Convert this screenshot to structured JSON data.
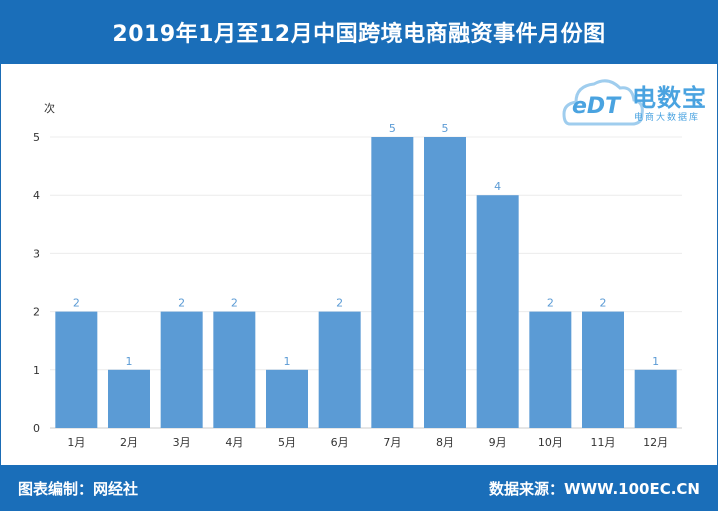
{
  "header": {
    "title": "2019年1月至12月中国跨境电商融资事件月份图"
  },
  "footer": {
    "left": "图表编制：网经社",
    "right": "数据来源：WWW.100EC.CN"
  },
  "logo": {
    "main": "电数宝",
    "sub": "电商大数据库",
    "mark": "eDT",
    "icon": "cloud-icon"
  },
  "colors": {
    "bar": "#5b9bd5",
    "header": "#1a6eb9",
    "label": "#5b9bd5"
  },
  "chart_data": {
    "type": "bar",
    "categories": [
      "1月",
      "2月",
      "3月",
      "4月",
      "5月",
      "6月",
      "7月",
      "8月",
      "9月",
      "10月",
      "11月",
      "12月"
    ],
    "values": [
      2,
      1,
      2,
      2,
      1,
      2,
      5,
      5,
      4,
      2,
      2,
      1
    ],
    "ylabel": "次",
    "ylim": [
      0,
      5
    ],
    "yticks": [
      0,
      1,
      2,
      3,
      4,
      5
    ],
    "grid": true
  }
}
